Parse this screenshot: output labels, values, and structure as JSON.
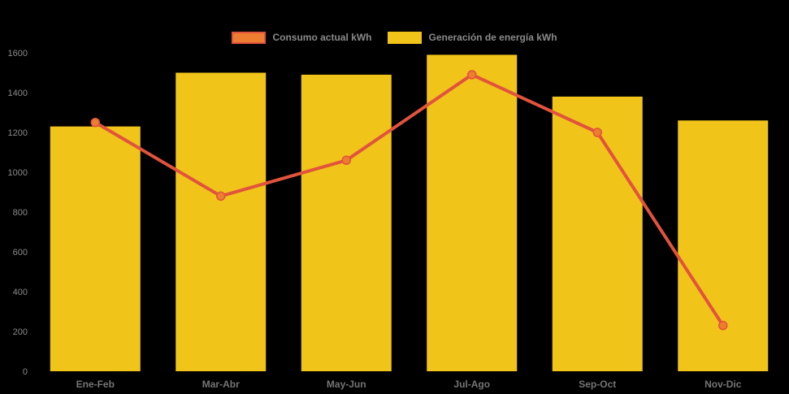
{
  "chart_data": {
    "type": "bar",
    "title": "",
    "xlabel": "",
    "ylabel": "",
    "categories": [
      "Ene-Feb",
      "Mar-Abr",
      "May-Jun",
      "Jul-Ago",
      "Sep-Oct",
      "Nov-Dic"
    ],
    "series": [
      {
        "name": "Consumo actual kWh",
        "type": "line",
        "values": [
          1250,
          880,
          1060,
          1490,
          1200,
          230
        ]
      },
      {
        "name": "Generación de energía kWh",
        "type": "bar",
        "values": [
          1230,
          1500,
          1490,
          1590,
          1380,
          1260
        ]
      }
    ],
    "ylim": [
      0,
      1600
    ],
    "yticks": [
      0,
      200,
      400,
      600,
      800,
      1000,
      1200,
      1400,
      1600
    ],
    "grid": false,
    "legend_position": "top-center"
  },
  "legend": {
    "items": [
      {
        "label": "Consumo actual kWh",
        "swatch_fill": "#ed7d31",
        "swatch_border": "#e2533d"
      },
      {
        "label": "Generación de energía kWh",
        "swatch_fill": "#f0c419",
        "swatch_border": "#f0c419"
      }
    ]
  },
  "colors": {
    "background": "#000000",
    "bar": "#f0c419",
    "line": "#e2533d",
    "marker_fill": "#ed7d31",
    "y_tick_text": "#8a8a8a",
    "x_label_text": "#757575"
  }
}
